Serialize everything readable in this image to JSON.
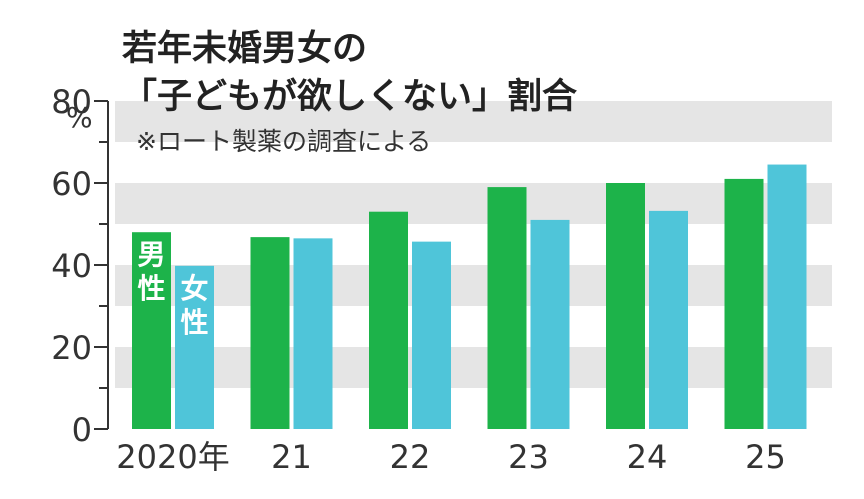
{
  "chart_data": {
    "type": "bar",
    "title": [
      "若年未婚男女の",
      "「子どもが欲しくない」割合"
    ],
    "note": "※ロート製薬の調査による",
    "ylabel": "%",
    "ylim": [
      0,
      80
    ],
    "yticks": [
      0,
      20,
      40,
      60,
      80
    ],
    "categories": [
      "2020年",
      "21",
      "22",
      "23",
      "24",
      "25"
    ],
    "series": [
      {
        "name": "男性",
        "label_chars": [
          "男",
          "性"
        ],
        "color": "#1db34a",
        "values": [
          48,
          46.8,
          53,
          59,
          60,
          61
        ]
      },
      {
        "name": "女性",
        "label_chars": [
          "女",
          "性"
        ],
        "color": "#4fc5d9",
        "values": [
          39.8,
          46.5,
          45.7,
          51,
          53.2,
          64.5
        ]
      }
    ],
    "grid_bands": true,
    "colors": {
      "band": "#e5e5e5",
      "axis": "#333333",
      "text": "#222222"
    }
  }
}
